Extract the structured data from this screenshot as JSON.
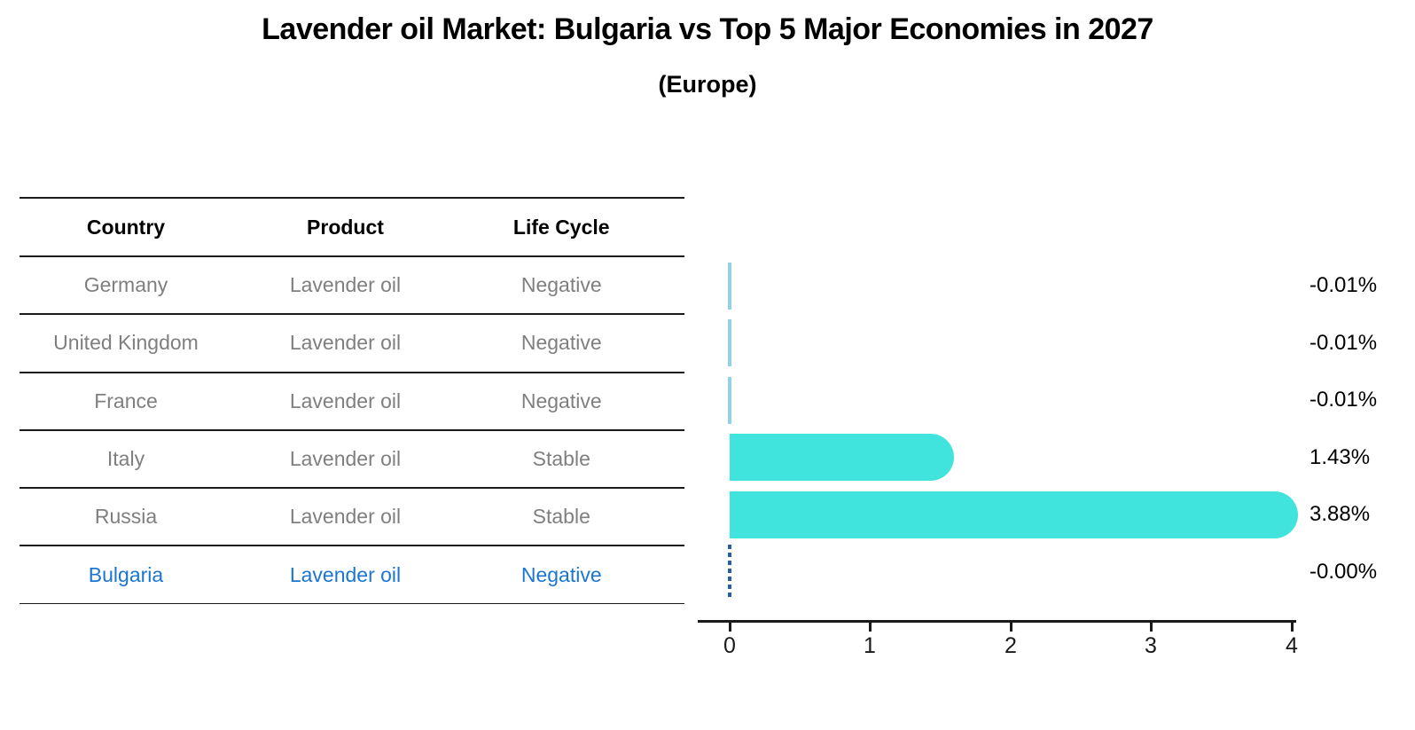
{
  "title": "Lavender oil Market: Bulgaria vs Top 5 Major Economies in 2027",
  "subtitle": "(Europe)",
  "table": {
    "headers": [
      "Country",
      "Product",
      "Life Cycle"
    ],
    "rows": [
      {
        "country": "Germany",
        "product": "Lavender oil",
        "life_cycle": "Negative",
        "highlight": false
      },
      {
        "country": "United Kingdom",
        "product": "Lavender oil",
        "life_cycle": "Negative",
        "highlight": false
      },
      {
        "country": "France",
        "product": "Lavender oil",
        "life_cycle": "Negative",
        "highlight": false
      },
      {
        "country": "Italy",
        "product": "Lavender oil",
        "life_cycle": "Stable",
        "highlight": false
      },
      {
        "country": "Russia",
        "product": "Lavender oil",
        "life_cycle": "Stable",
        "highlight": false
      },
      {
        "country": "Bulgaria",
        "product": "Lavender oil",
        "life_cycle": "Negative",
        "highlight": true
      }
    ]
  },
  "chart_data": {
    "type": "bar",
    "orientation": "horizontal",
    "title": "Lavender oil Market: Bulgaria vs Top 5 Major Economies in 2027",
    "subtitle": "(Europe)",
    "categories": [
      "Germany",
      "United Kingdom",
      "France",
      "Italy",
      "Russia",
      "Bulgaria"
    ],
    "values": [
      -0.01,
      -0.01,
      -0.01,
      1.43,
      3.88,
      -0.0
    ],
    "labels": [
      "-0.01%",
      "-0.01%",
      "-0.01%",
      "1.43%",
      "3.88%",
      "-0.00%"
    ],
    "unit": "percent",
    "xticks": [
      0,
      1,
      2,
      3,
      4
    ],
    "xlim": [
      0,
      4
    ],
    "grid": false,
    "target_marker": "Bulgaria shown as dashed vertical line at 0"
  },
  "colors": {
    "bar_fill": "#40E4DC",
    "small_bar_fill": "#90D2EE",
    "target_line": "#2B5CA8",
    "highlight_text": "#1A76D2",
    "body_text": "#7F7F7F",
    "axis_ink": "#1A1A1A"
  }
}
